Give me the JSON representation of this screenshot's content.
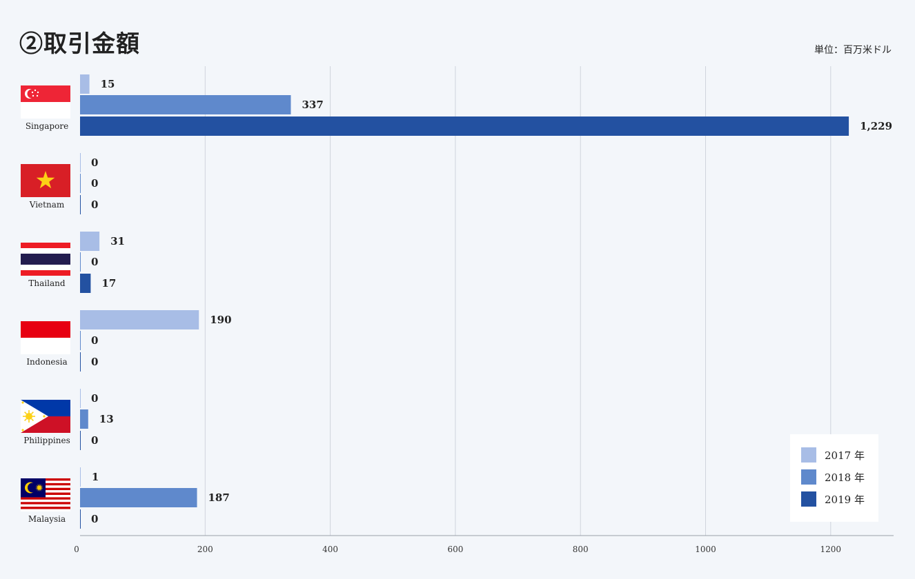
{
  "title": "②取引金額",
  "unit_label": "単位：百万米ドル",
  "colors": {
    "2017": "#a8bde6",
    "2018": "#5f89cc",
    "2019": "#2351a1"
  },
  "legend": {
    "items": [
      {
        "label": "2017 年",
        "color": "#a8bde6"
      },
      {
        "label": "2018 年",
        "color": "#5f89cc"
      },
      {
        "label": "2019 年",
        "color": "#2351a1"
      }
    ]
  },
  "chart_data": {
    "type": "bar",
    "orientation": "horizontal",
    "categories": [
      "Singapore",
      "Vietnam",
      "Thailand",
      "Indonesia",
      "Philippines",
      "Malaysia"
    ],
    "series": [
      {
        "name": "2017 年",
        "values": [
          15,
          0,
          31,
          190,
          0,
          1
        ],
        "labels": [
          "15",
          "0",
          "31",
          "190",
          "0",
          "1"
        ]
      },
      {
        "name": "2018 年",
        "values": [
          337,
          0,
          0,
          0,
          13,
          187
        ],
        "labels": [
          "337",
          "0",
          "0",
          "0",
          "13",
          "187"
        ]
      },
      {
        "name": "2019 年",
        "values": [
          1229,
          0,
          17,
          0,
          0,
          0
        ],
        "labels": [
          "1,229",
          "0",
          "17",
          "0",
          "0",
          "0"
        ]
      }
    ],
    "x_ticks": [
      "0",
      "200",
      "400",
      "600",
      "800",
      "1000",
      "1200"
    ],
    "xlim": [
      0,
      1300
    ],
    "grid": true,
    "legend_position": "bottom-right",
    "flags": [
      "singapore-flag",
      "vietnam-flag",
      "thailand-flag",
      "indonesia-flag",
      "philippines-flag",
      "malaysia-flag"
    ]
  }
}
